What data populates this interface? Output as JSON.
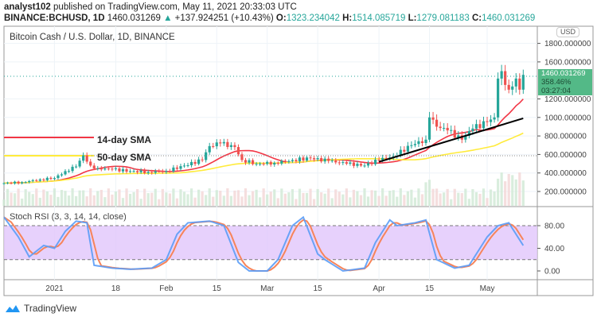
{
  "header": {
    "author": "analyst102",
    "published": "published on TradingView.com, May 11, 2021 20:33:03 UTC",
    "symbol": "BINANCE:BCHUSD, 1D",
    "last": "1460.031269",
    "arrow": "▲",
    "change": "+137.924251 (+10.43%)",
    "o_label": "O:",
    "o": "1323.234042",
    "h_label": "H:",
    "h": "1514.085719",
    "l_label": "L:",
    "l": "1279.081183",
    "c_label": "C:",
    "c": "1460.031269"
  },
  "chart_title": "Bitcoin Cash / U.S. Dollar, 1D, BINANCE",
  "currency": "USD",
  "price_label": {
    "price": "1460.031269",
    "pct": "358.46%",
    "countdown": "03:27:04"
  },
  "annotations": {
    "sma14": "14-day SMA",
    "sma50": "50-day SMA"
  },
  "indicator_title": "Stoch RSI (3, 3, 14, 14, close)",
  "brand": "TradingView",
  "colors": {
    "up": "#26a69a",
    "down": "#ef5350",
    "sma14": "#f23645",
    "sma50": "#ffeb3b",
    "stoch_k": "#5b9cf6",
    "stoch_d": "#f7845a",
    "band": "#e1c5fb"
  },
  "chart_data": [
    {
      "type": "candlestick",
      "name": "BCHUSD",
      "y_ticks": [
        "1800.000000",
        "1600.000000",
        "1200.000000",
        "1000.000000",
        "800.000000",
        "600.000000",
        "400.000000",
        "200.000000"
      ],
      "x_ticks": [
        {
          "date": "2021-01-01",
          "label": "2021"
        },
        {
          "date": "2021-01-18",
          "label": "18"
        },
        {
          "date": "2021-02-01",
          "label": "Feb"
        },
        {
          "date": "2021-02-15",
          "label": "15"
        },
        {
          "date": "2021-03-01",
          "label": "Mar"
        },
        {
          "date": "2021-03-15",
          "label": "15"
        },
        {
          "date": "2021-04-01",
          "label": "Apr"
        },
        {
          "date": "2021-04-15",
          "label": "15"
        },
        {
          "date": "2021-05-01",
          "label": "May"
        }
      ],
      "approx_close": [
        [
          "2020-12-18",
          290
        ],
        [
          "2020-12-23",
          300
        ],
        [
          "2020-12-28",
          330
        ],
        [
          "2021-01-01",
          345
        ],
        [
          "2021-01-04",
          420
        ],
        [
          "2021-01-07",
          470
        ],
        [
          "2021-01-09",
          590
        ],
        [
          "2021-01-11",
          480
        ],
        [
          "2021-01-13",
          450
        ],
        [
          "2021-01-17",
          440
        ],
        [
          "2021-01-22",
          420
        ],
        [
          "2021-01-27",
          410
        ],
        [
          "2021-02-01",
          420
        ],
        [
          "2021-02-06",
          480
        ],
        [
          "2021-02-11",
          540
        ],
        [
          "2021-02-13",
          690
        ],
        [
          "2021-02-16",
          720
        ],
        [
          "2021-02-20",
          680
        ],
        [
          "2021-02-22",
          540
        ],
        [
          "2021-02-26",
          500
        ],
        [
          "2021-03-03",
          510
        ],
        [
          "2021-03-08",
          540
        ],
        [
          "2021-03-13",
          560
        ],
        [
          "2021-03-18",
          530
        ],
        [
          "2021-03-23",
          500
        ],
        [
          "2021-03-28",
          480
        ],
        [
          "2021-04-01",
          540
        ],
        [
          "2021-04-05",
          580
        ],
        [
          "2021-04-10",
          700
        ],
        [
          "2021-04-14",
          760
        ],
        [
          "2021-04-15",
          1000
        ],
        [
          "2021-04-17",
          900
        ],
        [
          "2021-04-20",
          860
        ],
        [
          "2021-04-24",
          760
        ],
        [
          "2021-04-27",
          880
        ],
        [
          "2021-05-01",
          950
        ],
        [
          "2021-05-03",
          1000
        ],
        [
          "2021-05-04",
          1420
        ],
        [
          "2021-05-05",
          1500
        ],
        [
          "2021-05-07",
          1300
        ],
        [
          "2021-05-09",
          1420
        ],
        [
          "2021-05-10",
          1300
        ],
        [
          "2021-05-11",
          1460
        ]
      ],
      "trendline": [
        [
          "2021-04-01",
          520
        ],
        [
          "2021-05-11",
          990
        ]
      ],
      "sma_periods": [
        14,
        50
      ]
    },
    {
      "type": "line",
      "name": "Stoch RSI",
      "y_ticks": [
        "80.00",
        "40.00",
        "0.00"
      ],
      "band": [
        20,
        80
      ],
      "k": [
        [
          "2020-12-18",
          95
        ],
        [
          "2020-12-22",
          60
        ],
        [
          "2020-12-25",
          25
        ],
        [
          "2020-12-29",
          45
        ],
        [
          "2021-01-01",
          40
        ],
        [
          "2021-01-04",
          70
        ],
        [
          "2021-01-07",
          88
        ],
        [
          "2021-01-10",
          85
        ],
        [
          "2021-01-12",
          10
        ],
        [
          "2021-01-17",
          5
        ],
        [
          "2021-01-22",
          3
        ],
        [
          "2021-01-28",
          5
        ],
        [
          "2021-02-01",
          20
        ],
        [
          "2021-02-04",
          65
        ],
        [
          "2021-02-07",
          85
        ],
        [
          "2021-02-13",
          88
        ],
        [
          "2021-02-17",
          80
        ],
        [
          "2021-02-21",
          15
        ],
        [
          "2021-02-24",
          0
        ],
        [
          "2021-03-01",
          0
        ],
        [
          "2021-03-04",
          20
        ],
        [
          "2021-03-08",
          80
        ],
        [
          "2021-03-11",
          95
        ],
        [
          "2021-03-15",
          30
        ],
        [
          "2021-03-17",
          20
        ],
        [
          "2021-03-22",
          0
        ],
        [
          "2021-03-28",
          5
        ],
        [
          "2021-03-31",
          50
        ],
        [
          "2021-04-04",
          90
        ],
        [
          "2021-04-06",
          80
        ],
        [
          "2021-04-11",
          85
        ],
        [
          "2021-04-14",
          90
        ],
        [
          "2021-04-17",
          20
        ],
        [
          "2021-04-22",
          5
        ],
        [
          "2021-04-26",
          10
        ],
        [
          "2021-05-01",
          60
        ],
        [
          "2021-05-04",
          80
        ],
        [
          "2021-05-07",
          85
        ],
        [
          "2021-05-11",
          45
        ]
      ]
    }
  ]
}
